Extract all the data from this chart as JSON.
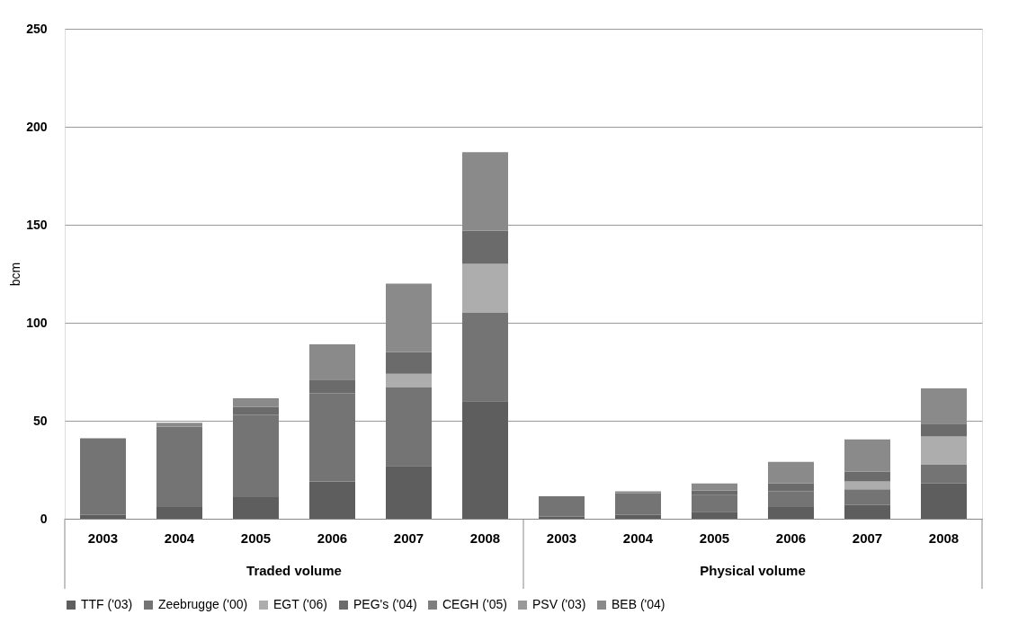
{
  "chart_data": {
    "type": "bar",
    "stacked": true,
    "ylabel": "bcm",
    "categories": [
      "2003",
      "2004",
      "2005",
      "2006",
      "2007",
      "2008",
      "2003",
      "2004",
      "2005",
      "2006",
      "2007",
      "2008"
    ],
    "annotations": [
      "Traded volume",
      "Physical volume"
    ],
    "series": [
      {
        "name": "TTF ('03)",
        "color": "#5e5e5e",
        "values": [
          2,
          6,
          11,
          19,
          27,
          60,
          1,
          2,
          3.5,
          6,
          7,
          18
        ]
      },
      {
        "name": "Zeebrugge ('00)",
        "color": "#747474",
        "values": [
          39,
          41,
          42,
          45,
          40,
          45,
          10.5,
          11,
          8.5,
          8,
          8,
          9.5
        ]
      },
      {
        "name": "EGT ('06)",
        "color": "#adadad",
        "values": [
          null,
          null,
          null,
          null,
          7,
          25,
          null,
          null,
          null,
          null,
          4,
          14.5
        ]
      },
      {
        "name": "PEG's ('04)",
        "color": "#6b6b6b",
        "values": [
          null,
          null,
          4,
          7,
          11,
          17,
          null,
          null,
          2.5,
          4,
          5,
          6.5
        ]
      },
      {
        "name": "CEGH ('05)",
        "color": "#7f7f7f",
        "values": [
          null,
          null,
          null,
          null,
          null,
          null,
          null,
          null,
          null,
          null,
          null,
          null
        ]
      },
      {
        "name": "PSV ('03)",
        "color": "#999999",
        "values": [
          null,
          null,
          null,
          null,
          null,
          null,
          null,
          null,
          null,
          null,
          null,
          null
        ]
      },
      {
        "name": "BEB ('04)",
        "color": "#8a8a8a",
        "values": [
          null,
          2,
          4.5,
          18,
          35,
          40,
          null,
          1,
          3.5,
          11,
          16.5,
          18
        ]
      }
    ],
    "ylim": [
      0,
      250
    ],
    "yticks": [
      0,
      50,
      100,
      150,
      200,
      250
    ],
    "grid": "y",
    "legend": "bottom"
  }
}
